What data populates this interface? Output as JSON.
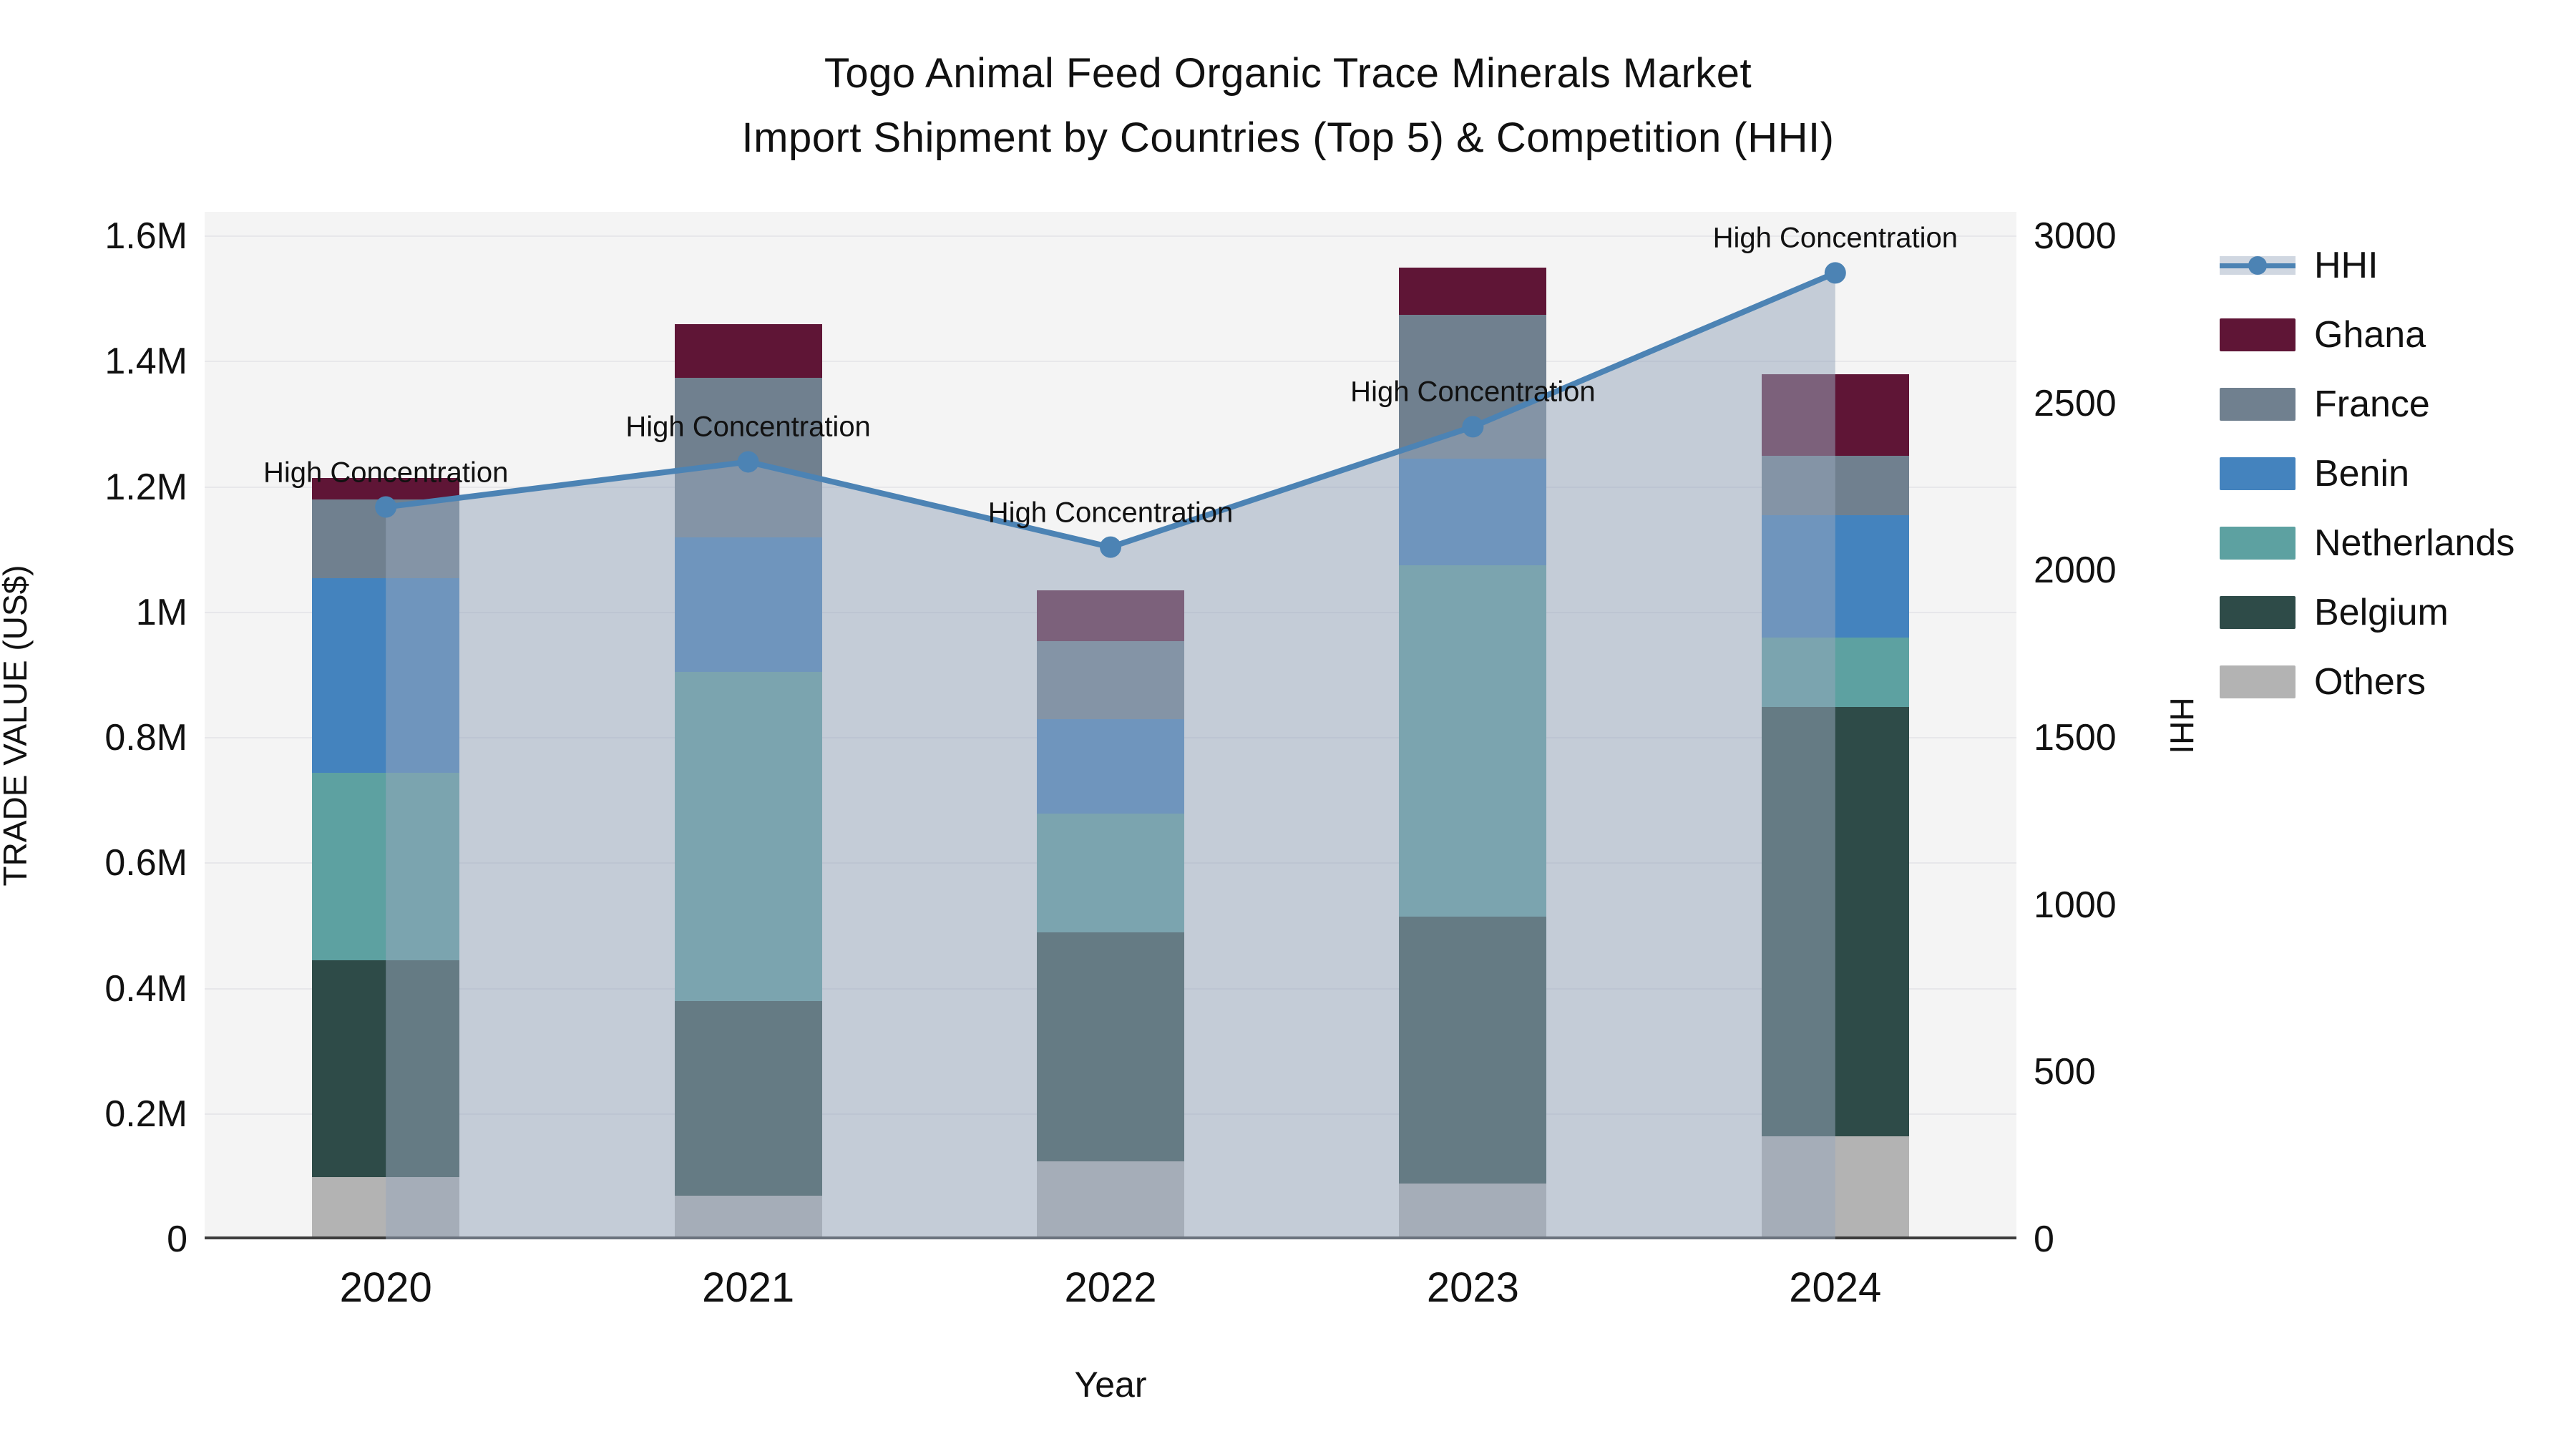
{
  "title": {
    "line1": "Togo Animal Feed Organic Trace Minerals Market",
    "line2": "Import Shipment by Countries (Top 5) & Competition (HHI)"
  },
  "colors": {
    "ghana": "#5F1536",
    "france": "#70808F",
    "benin": "#4483BE",
    "netherlands": "#5DA1A1",
    "belgium": "#2E4B48",
    "others": "#B3B3B3",
    "hhi_line": "#4C83B4",
    "hhi_area": "rgba(151,166,188,0.52)",
    "plot_bg": "#f4f4f4",
    "gridline": "#e7e7ea"
  },
  "legend": {
    "items": [
      {
        "key": "hhi",
        "label": "HHI",
        "type": "line"
      },
      {
        "key": "ghana",
        "label": "Ghana",
        "type": "box"
      },
      {
        "key": "france",
        "label": "France",
        "type": "box"
      },
      {
        "key": "benin",
        "label": "Benin",
        "type": "box"
      },
      {
        "key": "netherlands",
        "label": "Netherlands",
        "type": "box"
      },
      {
        "key": "belgium",
        "label": "Belgium",
        "type": "box"
      },
      {
        "key": "others",
        "label": "Others",
        "type": "box"
      }
    ]
  },
  "chart_data": {
    "type": "bar",
    "subtype": "stacked-bars-with-line",
    "title": "Togo Animal Feed Organic Trace Minerals Market Import Shipment by Countries (Top 5) & Competition (HHI)",
    "categories": [
      "2020",
      "2021",
      "2022",
      "2023",
      "2024"
    ],
    "xlabel": "Year",
    "ylabel": "TRADE VALUE (US$)",
    "y2label": "HHI",
    "ylim": [
      0,
      1600000
    ],
    "y2lim": [
      0,
      3000
    ],
    "grid": "horizontal",
    "legend_position": "right",
    "bar_unit": "US$",
    "series": [
      {
        "name": "Others",
        "color_key": "others",
        "values": [
          95000,
          65000,
          120000,
          85000,
          160000
        ]
      },
      {
        "name": "Belgium",
        "color_key": "belgium",
        "values": [
          345000,
          310000,
          365000,
          425000,
          685000
        ]
      },
      {
        "name": "Netherlands",
        "color_key": "netherlands",
        "values": [
          300000,
          525000,
          190000,
          560000,
          110000
        ]
      },
      {
        "name": "Benin",
        "color_key": "benin",
        "values": [
          310000,
          215000,
          150000,
          170000,
          195000
        ]
      },
      {
        "name": "France",
        "color_key": "france",
        "values": [
          125000,
          255000,
          125000,
          230000,
          95000
        ]
      },
      {
        "name": "Ghana",
        "color_key": "ghana",
        "values": [
          35000,
          85000,
          80000,
          75000,
          130000
        ]
      }
    ],
    "bar_totals": [
      1210000,
      1455000,
      1030000,
      1545000,
      1375000
    ],
    "line_series": {
      "name": "HHI",
      "axis": "right",
      "values": [
        2190,
        2325,
        2070,
        2430,
        2890
      ],
      "area_fill": true,
      "point_annotation": "High Concentration"
    },
    "y_ticks": [
      {
        "label": "0",
        "value": 0
      },
      {
        "label": "0.2M",
        "value": 200000
      },
      {
        "label": "0.4M",
        "value": 400000
      },
      {
        "label": "0.6M",
        "value": 600000
      },
      {
        "label": "0.8M",
        "value": 800000
      },
      {
        "label": "1M",
        "value": 1000000
      },
      {
        "label": "1.2M",
        "value": 1200000
      },
      {
        "label": "1.4M",
        "value": 1400000
      },
      {
        "label": "1.6M",
        "value": 1600000
      }
    ],
    "y2_ticks": [
      {
        "label": "0",
        "value": 0
      },
      {
        "label": "500",
        "value": 500
      },
      {
        "label": "1000",
        "value": 1000
      },
      {
        "label": "1500",
        "value": 1500
      },
      {
        "label": "2000",
        "value": 2000
      },
      {
        "label": "2500",
        "value": 2500
      },
      {
        "label": "3000",
        "value": 3000
      }
    ]
  }
}
